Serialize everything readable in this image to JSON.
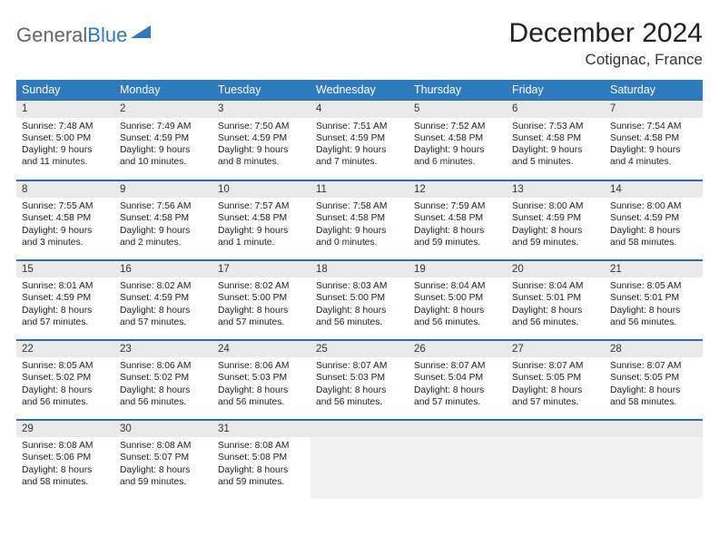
{
  "brand": {
    "part1": "General",
    "part2": "Blue"
  },
  "header": {
    "title": "December 2024",
    "location": "Cotignac, France"
  },
  "colors": {
    "accent": "#2f7abf",
    "header_bg": "#2f7abf",
    "header_text": "#ffffff",
    "daynum_bg": "#e9e9e9",
    "rule": "#2f6aa8",
    "body_text": "#222222",
    "empty_bg": "#f2f2f2"
  },
  "days_of_week": [
    "Sunday",
    "Monday",
    "Tuesday",
    "Wednesday",
    "Thursday",
    "Friday",
    "Saturday"
  ],
  "weeks": [
    [
      {
        "n": "1",
        "sunrise": "7:48 AM",
        "sunset": "5:00 PM",
        "dl1": "Daylight: 9 hours",
        "dl2": "and 11 minutes."
      },
      {
        "n": "2",
        "sunrise": "7:49 AM",
        "sunset": "4:59 PM",
        "dl1": "Daylight: 9 hours",
        "dl2": "and 10 minutes."
      },
      {
        "n": "3",
        "sunrise": "7:50 AM",
        "sunset": "4:59 PM",
        "dl1": "Daylight: 9 hours",
        "dl2": "and 8 minutes."
      },
      {
        "n": "4",
        "sunrise": "7:51 AM",
        "sunset": "4:59 PM",
        "dl1": "Daylight: 9 hours",
        "dl2": "and 7 minutes."
      },
      {
        "n": "5",
        "sunrise": "7:52 AM",
        "sunset": "4:58 PM",
        "dl1": "Daylight: 9 hours",
        "dl2": "and 6 minutes."
      },
      {
        "n": "6",
        "sunrise": "7:53 AM",
        "sunset": "4:58 PM",
        "dl1": "Daylight: 9 hours",
        "dl2": "and 5 minutes."
      },
      {
        "n": "7",
        "sunrise": "7:54 AM",
        "sunset": "4:58 PM",
        "dl1": "Daylight: 9 hours",
        "dl2": "and 4 minutes."
      }
    ],
    [
      {
        "n": "8",
        "sunrise": "7:55 AM",
        "sunset": "4:58 PM",
        "dl1": "Daylight: 9 hours",
        "dl2": "and 3 minutes."
      },
      {
        "n": "9",
        "sunrise": "7:56 AM",
        "sunset": "4:58 PM",
        "dl1": "Daylight: 9 hours",
        "dl2": "and 2 minutes."
      },
      {
        "n": "10",
        "sunrise": "7:57 AM",
        "sunset": "4:58 PM",
        "dl1": "Daylight: 9 hours",
        "dl2": "and 1 minute."
      },
      {
        "n": "11",
        "sunrise": "7:58 AM",
        "sunset": "4:58 PM",
        "dl1": "Daylight: 9 hours",
        "dl2": "and 0 minutes."
      },
      {
        "n": "12",
        "sunrise": "7:59 AM",
        "sunset": "4:58 PM",
        "dl1": "Daylight: 8 hours",
        "dl2": "and 59 minutes."
      },
      {
        "n": "13",
        "sunrise": "8:00 AM",
        "sunset": "4:59 PM",
        "dl1": "Daylight: 8 hours",
        "dl2": "and 59 minutes."
      },
      {
        "n": "14",
        "sunrise": "8:00 AM",
        "sunset": "4:59 PM",
        "dl1": "Daylight: 8 hours",
        "dl2": "and 58 minutes."
      }
    ],
    [
      {
        "n": "15",
        "sunrise": "8:01 AM",
        "sunset": "4:59 PM",
        "dl1": "Daylight: 8 hours",
        "dl2": "and 57 minutes."
      },
      {
        "n": "16",
        "sunrise": "8:02 AM",
        "sunset": "4:59 PM",
        "dl1": "Daylight: 8 hours",
        "dl2": "and 57 minutes."
      },
      {
        "n": "17",
        "sunrise": "8:02 AM",
        "sunset": "5:00 PM",
        "dl1": "Daylight: 8 hours",
        "dl2": "and 57 minutes."
      },
      {
        "n": "18",
        "sunrise": "8:03 AM",
        "sunset": "5:00 PM",
        "dl1": "Daylight: 8 hours",
        "dl2": "and 56 minutes."
      },
      {
        "n": "19",
        "sunrise": "8:04 AM",
        "sunset": "5:00 PM",
        "dl1": "Daylight: 8 hours",
        "dl2": "and 56 minutes."
      },
      {
        "n": "20",
        "sunrise": "8:04 AM",
        "sunset": "5:01 PM",
        "dl1": "Daylight: 8 hours",
        "dl2": "and 56 minutes."
      },
      {
        "n": "21",
        "sunrise": "8:05 AM",
        "sunset": "5:01 PM",
        "dl1": "Daylight: 8 hours",
        "dl2": "and 56 minutes."
      }
    ],
    [
      {
        "n": "22",
        "sunrise": "8:05 AM",
        "sunset": "5:02 PM",
        "dl1": "Daylight: 8 hours",
        "dl2": "and 56 minutes."
      },
      {
        "n": "23",
        "sunrise": "8:06 AM",
        "sunset": "5:02 PM",
        "dl1": "Daylight: 8 hours",
        "dl2": "and 56 minutes."
      },
      {
        "n": "24",
        "sunrise": "8:06 AM",
        "sunset": "5:03 PM",
        "dl1": "Daylight: 8 hours",
        "dl2": "and 56 minutes."
      },
      {
        "n": "25",
        "sunrise": "8:07 AM",
        "sunset": "5:03 PM",
        "dl1": "Daylight: 8 hours",
        "dl2": "and 56 minutes."
      },
      {
        "n": "26",
        "sunrise": "8:07 AM",
        "sunset": "5:04 PM",
        "dl1": "Daylight: 8 hours",
        "dl2": "and 57 minutes."
      },
      {
        "n": "27",
        "sunrise": "8:07 AM",
        "sunset": "5:05 PM",
        "dl1": "Daylight: 8 hours",
        "dl2": "and 57 minutes."
      },
      {
        "n": "28",
        "sunrise": "8:07 AM",
        "sunset": "5:05 PM",
        "dl1": "Daylight: 8 hours",
        "dl2": "and 58 minutes."
      }
    ],
    [
      {
        "n": "29",
        "sunrise": "8:08 AM",
        "sunset": "5:06 PM",
        "dl1": "Daylight: 8 hours",
        "dl2": "and 58 minutes."
      },
      {
        "n": "30",
        "sunrise": "8:08 AM",
        "sunset": "5:07 PM",
        "dl1": "Daylight: 8 hours",
        "dl2": "and 59 minutes."
      },
      {
        "n": "31",
        "sunrise": "8:08 AM",
        "sunset": "5:08 PM",
        "dl1": "Daylight: 8 hours",
        "dl2": "and 59 minutes."
      },
      null,
      null,
      null,
      null
    ]
  ],
  "labels": {
    "sunrise_prefix": "Sunrise: ",
    "sunset_prefix": "Sunset: "
  }
}
